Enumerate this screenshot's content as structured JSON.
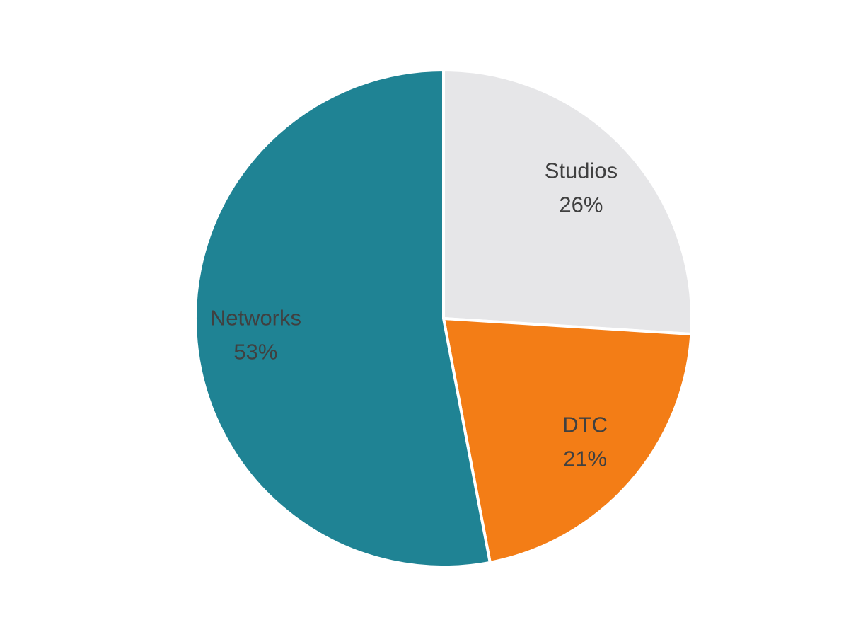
{
  "chart_data": {
    "type": "pie",
    "categories": [
      "Studios",
      "DTC",
      "Networks"
    ],
    "values": [
      26,
      21,
      53
    ],
    "value_labels": [
      "26%",
      "21%",
      "53%"
    ],
    "colors": [
      "#e6e6e8",
      "#f37d16",
      "#1f8394"
    ]
  }
}
